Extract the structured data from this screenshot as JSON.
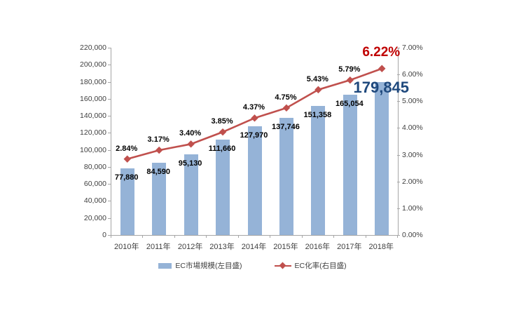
{
  "chart_data": {
    "type": "bar",
    "subtype": "combo-bar-line",
    "categories": [
      "2010年",
      "2011年",
      "2012年",
      "2013年",
      "2014年",
      "2015年",
      "2016年",
      "2017年",
      "2018年"
    ],
    "series": [
      {
        "name": "EC市場規模(左目盛)",
        "type": "bar",
        "axis": "left",
        "color": "#95b3d7",
        "values": [
          77880,
          84590,
          95130,
          111660,
          127970,
          137746,
          151358,
          165054,
          179845
        ],
        "labels": [
          "77,880",
          "84,590",
          "95,130",
          "111,660",
          "127,970",
          "137,746",
          "151,358",
          "165,054",
          "179,845"
        ]
      },
      {
        "name": "EC化率(右目盛)",
        "type": "line",
        "axis": "right",
        "color": "#c0504d",
        "values": [
          2.84,
          3.17,
          3.4,
          3.85,
          4.37,
          4.75,
          5.43,
          5.79,
          6.22
        ],
        "labels": [
          "2.84%",
          "3.17%",
          "3.40%",
          "3.85%",
          "4.37%",
          "4.75%",
          "5.43%",
          "5.79%",
          "6.22%"
        ]
      }
    ],
    "left_axis": {
      "min": 0,
      "max": 220000,
      "step": 20000,
      "tick_labels": [
        "0",
        "20,000",
        "40,000",
        "60,000",
        "80,000",
        "100,000",
        "120,000",
        "140,000",
        "160,000",
        "180,000",
        "200,000",
        "220,000"
      ]
    },
    "right_axis": {
      "min": 0,
      "max": 7,
      "step": 1,
      "tick_labels": [
        "0.00%",
        "1.00%",
        "2.00%",
        "3.00%",
        "4.00%",
        "5.00%",
        "6.00%",
        "7.00%"
      ]
    },
    "grid": "off",
    "legend_position": "bottom",
    "highlight": {
      "final_bar_label": "179,845",
      "final_bar_label_color": "#1f497d",
      "final_line_label": "6.22%",
      "final_line_label_color": "#c00000"
    }
  },
  "legend": {
    "items": [
      {
        "label": "EC市場規模(左目盛)",
        "marker": "bar-swatch",
        "color": "#95b3d7"
      },
      {
        "label": "EC化率(右目盛)",
        "marker": "line-diamond",
        "color": "#c0504d"
      }
    ]
  }
}
